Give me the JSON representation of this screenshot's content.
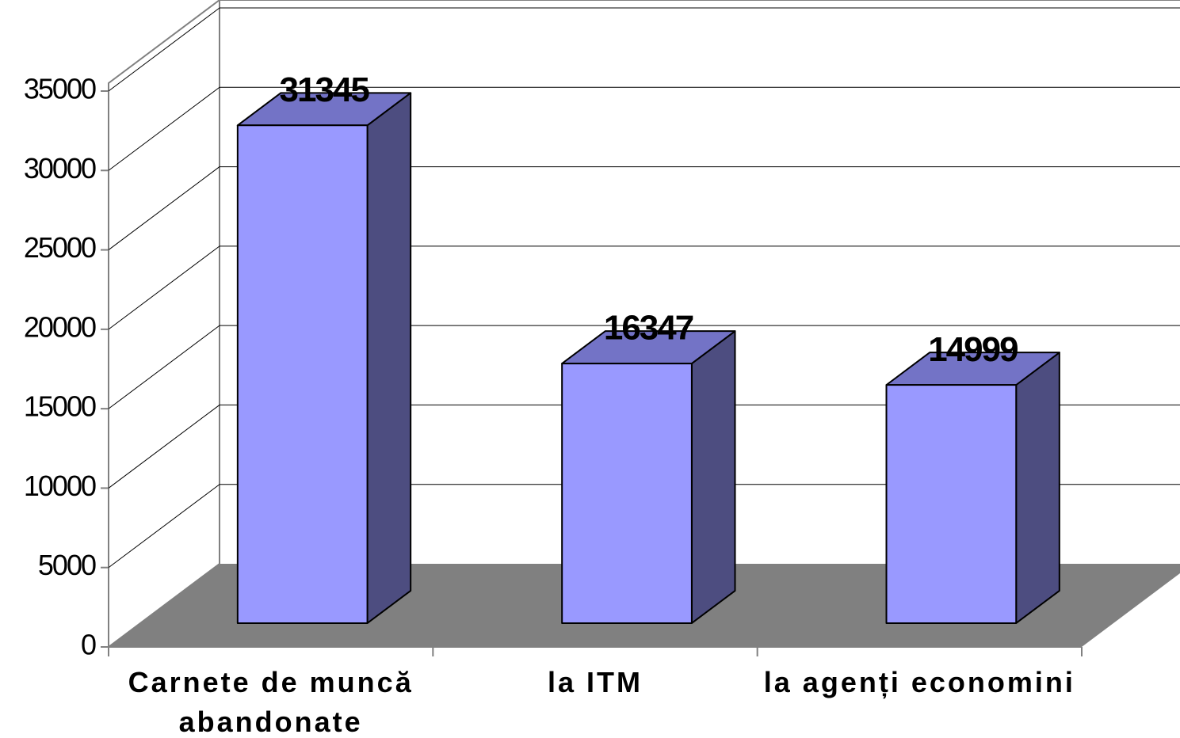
{
  "chart_data": {
    "type": "bar3d",
    "categories": [
      "Carnete de muncă abandonate",
      "la ITM",
      "la agenți economini"
    ],
    "values": [
      31345,
      16347,
      14999
    ],
    "color": "#9999ff",
    "side_color": "#4d4d80",
    "top_color": "#7373c6",
    "floor_color": "#808080",
    "ylim": [
      0,
      35000
    ],
    "yticks": [
      0,
      5000,
      10000,
      15000,
      20000,
      25000,
      30000,
      35000
    ],
    "grid": true
  }
}
